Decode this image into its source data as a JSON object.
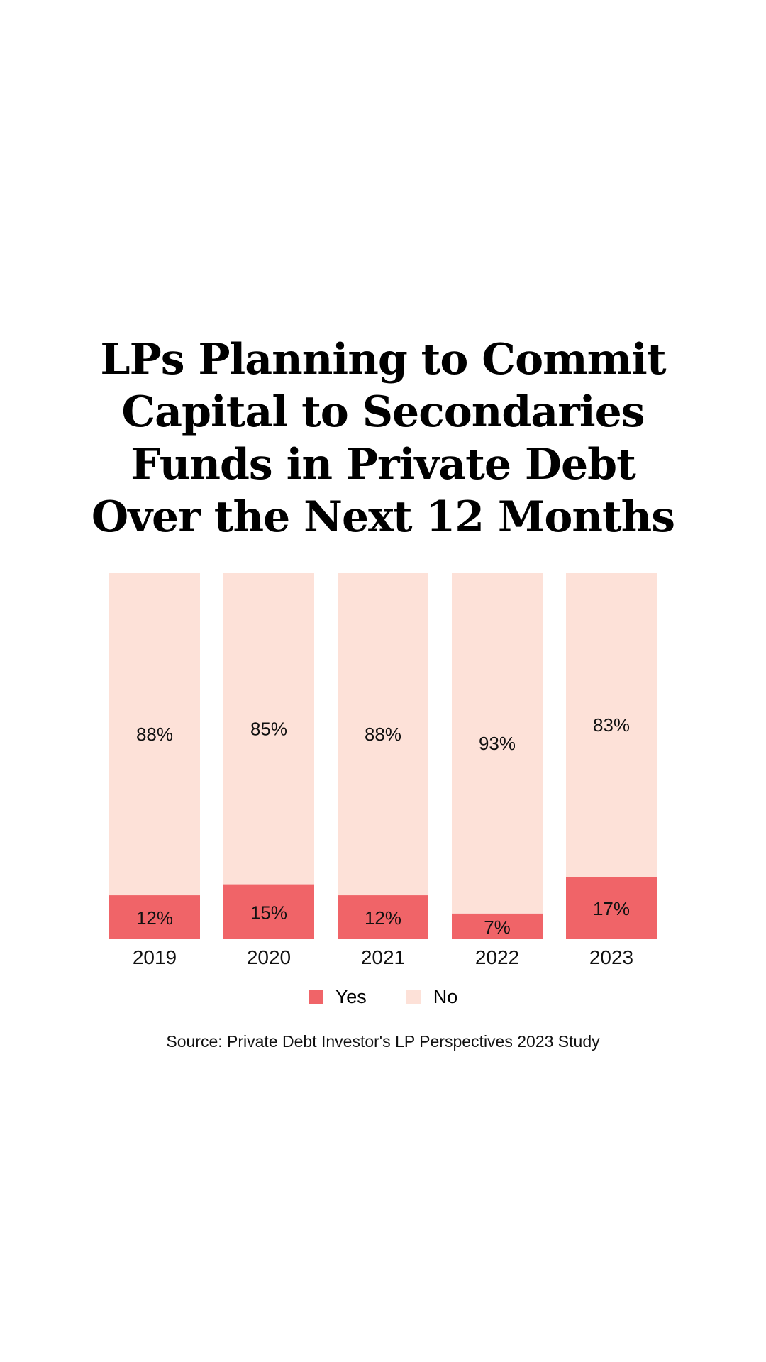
{
  "colors": {
    "yes": "#f06468",
    "no": "#fde1d8"
  },
  "chart_data": {
    "type": "bar",
    "stacked": true,
    "title_lines": [
      "LPs Planning to Commit",
      "Capital to Secondaries",
      "Funds in Private Debt",
      "Over the Next 12 Months"
    ],
    "categories": [
      "2019",
      "2020",
      "2021",
      "2022",
      "2023"
    ],
    "series": [
      {
        "name": "Yes",
        "values": [
          12,
          15,
          12,
          7,
          17
        ],
        "labels": [
          "12%",
          "15%",
          "12%",
          "7%",
          "17%"
        ]
      },
      {
        "name": "No",
        "values": [
          88,
          85,
          88,
          93,
          83
        ],
        "labels": [
          "88%",
          "85%",
          "88%",
          "93%",
          "83%"
        ]
      }
    ],
    "ylim": [
      0,
      100
    ],
    "legend_position": "bottom-center",
    "grid": false,
    "source": "Source: Private Debt Investor's LP Perspectives 2023 Study"
  }
}
